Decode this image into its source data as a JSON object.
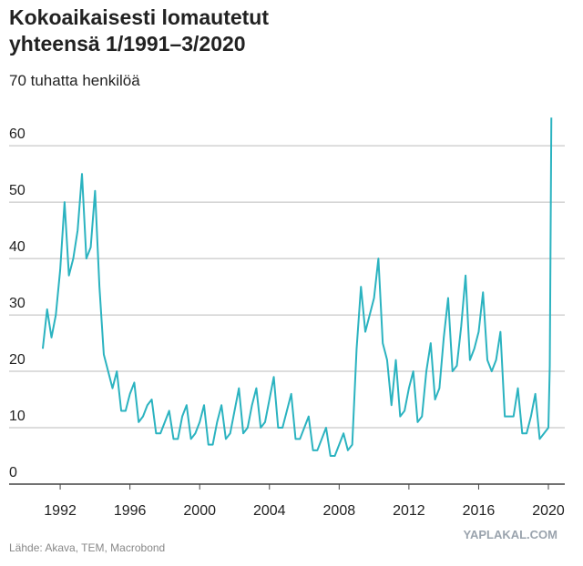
{
  "chart_data": {
    "type": "line",
    "title": "Kokoaikaisesti lomautetut",
    "subtitle": "yhteensä 1/1991–3/2020",
    "y_label": "70 tuhatta henkilöä",
    "source": "Lähde: Akava, TEM, Macrobond",
    "watermark": "YAPLAKAL.COM",
    "x": [
      1991.0,
      1991.25,
      1991.5,
      1991.75,
      1992.0,
      1992.25,
      1992.5,
      1992.75,
      1993.0,
      1993.25,
      1993.5,
      1993.75,
      1994.0,
      1994.25,
      1994.5,
      1994.75,
      1995.0,
      1995.25,
      1995.5,
      1995.75,
      1996.0,
      1996.25,
      1996.5,
      1996.75,
      1997.0,
      1997.25,
      1997.5,
      1997.75,
      1998.0,
      1998.25,
      1998.5,
      1998.75,
      1999.0,
      1999.25,
      1999.5,
      1999.75,
      2000.0,
      2000.25,
      2000.5,
      2000.75,
      2001.0,
      2001.25,
      2001.5,
      2001.75,
      2002.0,
      2002.25,
      2002.5,
      2002.75,
      2003.0,
      2003.25,
      2003.5,
      2003.75,
      2004.0,
      2004.25,
      2004.5,
      2004.75,
      2005.0,
      2005.25,
      2005.5,
      2005.75,
      2006.0,
      2006.25,
      2006.5,
      2006.75,
      2007.0,
      2007.25,
      2007.5,
      2007.75,
      2008.0,
      2008.25,
      2008.5,
      2008.75,
      2009.0,
      2009.25,
      2009.5,
      2009.75,
      2010.0,
      2010.25,
      2010.5,
      2010.75,
      2011.0,
      2011.25,
      2011.5,
      2011.75,
      2012.0,
      2012.25,
      2012.5,
      2012.75,
      2013.0,
      2013.25,
      2013.5,
      2013.75,
      2014.0,
      2014.25,
      2014.5,
      2014.75,
      2015.0,
      2015.25,
      2015.5,
      2015.75,
      2016.0,
      2016.25,
      2016.5,
      2016.75,
      2017.0,
      2017.25,
      2017.5,
      2017.75,
      2018.0,
      2018.25,
      2018.5,
      2018.75,
      2019.0,
      2019.25,
      2019.5,
      2019.75,
      2020.0,
      2020.08,
      2020.17
    ],
    "series": [
      {
        "name": "Lomautetut",
        "color": "#2bb3c0",
        "values": [
          24,
          31,
          26,
          30,
          38,
          50,
          37,
          40,
          45,
          55,
          40,
          42,
          52,
          35,
          23,
          20,
          17,
          20,
          13,
          13,
          16,
          18,
          11,
          12,
          14,
          15,
          9,
          9,
          11,
          13,
          8,
          8,
          12,
          14,
          8,
          9,
          11,
          14,
          7,
          7,
          11,
          14,
          8,
          9,
          13,
          17,
          9,
          10,
          14,
          17,
          10,
          11,
          15,
          19,
          10,
          10,
          13,
          16,
          8,
          8,
          10,
          12,
          6,
          6,
          8,
          10,
          5,
          5,
          7,
          9,
          6,
          7,
          24,
          35,
          27,
          30,
          33,
          40,
          25,
          22,
          14,
          22,
          12,
          13,
          17,
          20,
          11,
          12,
          20,
          25,
          15,
          17,
          26,
          33,
          20,
          21,
          28,
          37,
          22,
          24,
          27,
          34,
          22,
          20,
          22,
          27,
          12,
          12,
          12,
          17,
          9,
          9,
          12,
          16,
          8,
          9,
          10,
          21,
          65
        ]
      }
    ],
    "xlim": [
      1989.07,
      2020.94
    ],
    "xticks": [
      1992,
      1996,
      2000,
      2004,
      2008,
      2012,
      2016,
      2020
    ],
    "ylim": [
      0,
      66
    ],
    "yticks": [
      0,
      10,
      20,
      30,
      40,
      50,
      60
    ],
    "grid": true
  }
}
